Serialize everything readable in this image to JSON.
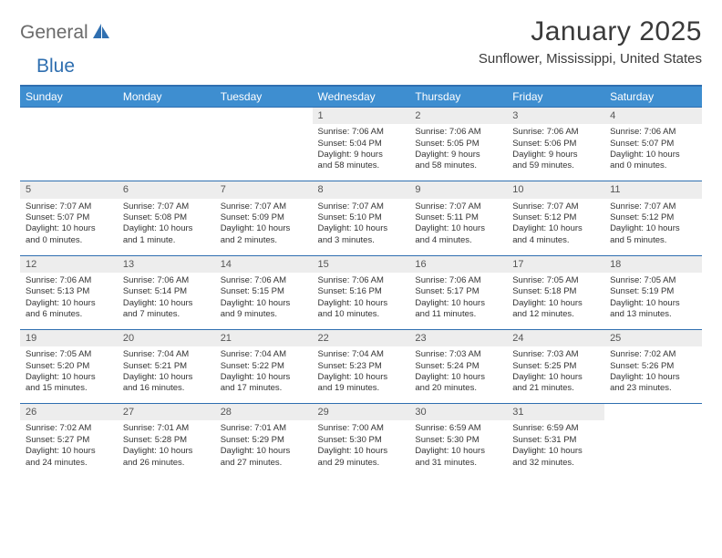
{
  "logo": {
    "general": "General",
    "blue": "Blue"
  },
  "title": "January 2025",
  "subtitle": "Sunflower, Mississippi, United States",
  "colors": {
    "header_bg": "#3e8ed0",
    "header_text": "#ffffff",
    "border": "#2f6fb0",
    "daynum_bg": "#ededed",
    "body_text": "#333333",
    "logo_gray": "#6a6a6a",
    "logo_blue": "#2f6fb0"
  },
  "days_of_week": [
    "Sunday",
    "Monday",
    "Tuesday",
    "Wednesday",
    "Thursday",
    "Friday",
    "Saturday"
  ],
  "weeks": [
    [
      {
        "empty": true
      },
      {
        "empty": true
      },
      {
        "empty": true
      },
      {
        "n": "1",
        "sunrise": "Sunrise: 7:06 AM",
        "sunset": "Sunset: 5:04 PM",
        "d1": "Daylight: 9 hours",
        "d2": "and 58 minutes."
      },
      {
        "n": "2",
        "sunrise": "Sunrise: 7:06 AM",
        "sunset": "Sunset: 5:05 PM",
        "d1": "Daylight: 9 hours",
        "d2": "and 58 minutes."
      },
      {
        "n": "3",
        "sunrise": "Sunrise: 7:06 AM",
        "sunset": "Sunset: 5:06 PM",
        "d1": "Daylight: 9 hours",
        "d2": "and 59 minutes."
      },
      {
        "n": "4",
        "sunrise": "Sunrise: 7:06 AM",
        "sunset": "Sunset: 5:07 PM",
        "d1": "Daylight: 10 hours",
        "d2": "and 0 minutes."
      }
    ],
    [
      {
        "n": "5",
        "sunrise": "Sunrise: 7:07 AM",
        "sunset": "Sunset: 5:07 PM",
        "d1": "Daylight: 10 hours",
        "d2": "and 0 minutes."
      },
      {
        "n": "6",
        "sunrise": "Sunrise: 7:07 AM",
        "sunset": "Sunset: 5:08 PM",
        "d1": "Daylight: 10 hours",
        "d2": "and 1 minute."
      },
      {
        "n": "7",
        "sunrise": "Sunrise: 7:07 AM",
        "sunset": "Sunset: 5:09 PM",
        "d1": "Daylight: 10 hours",
        "d2": "and 2 minutes."
      },
      {
        "n": "8",
        "sunrise": "Sunrise: 7:07 AM",
        "sunset": "Sunset: 5:10 PM",
        "d1": "Daylight: 10 hours",
        "d2": "and 3 minutes."
      },
      {
        "n": "9",
        "sunrise": "Sunrise: 7:07 AM",
        "sunset": "Sunset: 5:11 PM",
        "d1": "Daylight: 10 hours",
        "d2": "and 4 minutes."
      },
      {
        "n": "10",
        "sunrise": "Sunrise: 7:07 AM",
        "sunset": "Sunset: 5:12 PM",
        "d1": "Daylight: 10 hours",
        "d2": "and 4 minutes."
      },
      {
        "n": "11",
        "sunrise": "Sunrise: 7:07 AM",
        "sunset": "Sunset: 5:12 PM",
        "d1": "Daylight: 10 hours",
        "d2": "and 5 minutes."
      }
    ],
    [
      {
        "n": "12",
        "sunrise": "Sunrise: 7:06 AM",
        "sunset": "Sunset: 5:13 PM",
        "d1": "Daylight: 10 hours",
        "d2": "and 6 minutes."
      },
      {
        "n": "13",
        "sunrise": "Sunrise: 7:06 AM",
        "sunset": "Sunset: 5:14 PM",
        "d1": "Daylight: 10 hours",
        "d2": "and 7 minutes."
      },
      {
        "n": "14",
        "sunrise": "Sunrise: 7:06 AM",
        "sunset": "Sunset: 5:15 PM",
        "d1": "Daylight: 10 hours",
        "d2": "and 9 minutes."
      },
      {
        "n": "15",
        "sunrise": "Sunrise: 7:06 AM",
        "sunset": "Sunset: 5:16 PM",
        "d1": "Daylight: 10 hours",
        "d2": "and 10 minutes."
      },
      {
        "n": "16",
        "sunrise": "Sunrise: 7:06 AM",
        "sunset": "Sunset: 5:17 PM",
        "d1": "Daylight: 10 hours",
        "d2": "and 11 minutes."
      },
      {
        "n": "17",
        "sunrise": "Sunrise: 7:05 AM",
        "sunset": "Sunset: 5:18 PM",
        "d1": "Daylight: 10 hours",
        "d2": "and 12 minutes."
      },
      {
        "n": "18",
        "sunrise": "Sunrise: 7:05 AM",
        "sunset": "Sunset: 5:19 PM",
        "d1": "Daylight: 10 hours",
        "d2": "and 13 minutes."
      }
    ],
    [
      {
        "n": "19",
        "sunrise": "Sunrise: 7:05 AM",
        "sunset": "Sunset: 5:20 PM",
        "d1": "Daylight: 10 hours",
        "d2": "and 15 minutes."
      },
      {
        "n": "20",
        "sunrise": "Sunrise: 7:04 AM",
        "sunset": "Sunset: 5:21 PM",
        "d1": "Daylight: 10 hours",
        "d2": "and 16 minutes."
      },
      {
        "n": "21",
        "sunrise": "Sunrise: 7:04 AM",
        "sunset": "Sunset: 5:22 PM",
        "d1": "Daylight: 10 hours",
        "d2": "and 17 minutes."
      },
      {
        "n": "22",
        "sunrise": "Sunrise: 7:04 AM",
        "sunset": "Sunset: 5:23 PM",
        "d1": "Daylight: 10 hours",
        "d2": "and 19 minutes."
      },
      {
        "n": "23",
        "sunrise": "Sunrise: 7:03 AM",
        "sunset": "Sunset: 5:24 PM",
        "d1": "Daylight: 10 hours",
        "d2": "and 20 minutes."
      },
      {
        "n": "24",
        "sunrise": "Sunrise: 7:03 AM",
        "sunset": "Sunset: 5:25 PM",
        "d1": "Daylight: 10 hours",
        "d2": "and 21 minutes."
      },
      {
        "n": "25",
        "sunrise": "Sunrise: 7:02 AM",
        "sunset": "Sunset: 5:26 PM",
        "d1": "Daylight: 10 hours",
        "d2": "and 23 minutes."
      }
    ],
    [
      {
        "n": "26",
        "sunrise": "Sunrise: 7:02 AM",
        "sunset": "Sunset: 5:27 PM",
        "d1": "Daylight: 10 hours",
        "d2": "and 24 minutes."
      },
      {
        "n": "27",
        "sunrise": "Sunrise: 7:01 AM",
        "sunset": "Sunset: 5:28 PM",
        "d1": "Daylight: 10 hours",
        "d2": "and 26 minutes."
      },
      {
        "n": "28",
        "sunrise": "Sunrise: 7:01 AM",
        "sunset": "Sunset: 5:29 PM",
        "d1": "Daylight: 10 hours",
        "d2": "and 27 minutes."
      },
      {
        "n": "29",
        "sunrise": "Sunrise: 7:00 AM",
        "sunset": "Sunset: 5:30 PM",
        "d1": "Daylight: 10 hours",
        "d2": "and 29 minutes."
      },
      {
        "n": "30",
        "sunrise": "Sunrise: 6:59 AM",
        "sunset": "Sunset: 5:30 PM",
        "d1": "Daylight: 10 hours",
        "d2": "and 31 minutes."
      },
      {
        "n": "31",
        "sunrise": "Sunrise: 6:59 AM",
        "sunset": "Sunset: 5:31 PM",
        "d1": "Daylight: 10 hours",
        "d2": "and 32 minutes."
      },
      {
        "empty": true
      }
    ]
  ]
}
